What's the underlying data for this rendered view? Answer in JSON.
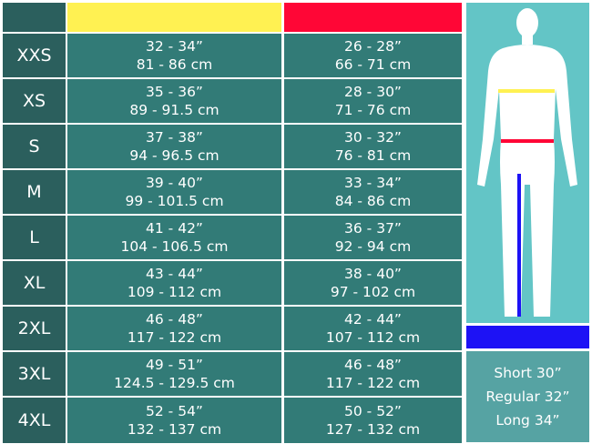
{
  "colors": {
    "chest": "#fff152",
    "waist": "#ff0636",
    "inseam": "#1d12f5"
  },
  "rows": [
    {
      "size": "XXS",
      "chest_in": "32 - 34”",
      "chest_cm": "81 - 86 cm",
      "waist_in": "26 - 28”",
      "waist_cm": "66 - 71 cm"
    },
    {
      "size": "XS",
      "chest_in": "35 - 36”",
      "chest_cm": "89 - 91.5 cm",
      "waist_in": "28 - 30”",
      "waist_cm": "71 - 76 cm"
    },
    {
      "size": "S",
      "chest_in": "37 - 38”",
      "chest_cm": "94 - 96.5 cm",
      "waist_in": "30 - 32”",
      "waist_cm": "76 - 81 cm"
    },
    {
      "size": "M",
      "chest_in": "39 - 40”",
      "chest_cm": "99 - 101.5 cm",
      "waist_in": "33 - 34”",
      "waist_cm": "84 - 86 cm"
    },
    {
      "size": "L",
      "chest_in": "41 - 42”",
      "chest_cm": "104 - 106.5 cm",
      "waist_in": "36 - 37”",
      "waist_cm": "92 - 94 cm"
    },
    {
      "size": "XL",
      "chest_in": "43 - 44”",
      "chest_cm": "109 - 112 cm",
      "waist_in": "38 - 40”",
      "waist_cm": "97 - 102 cm"
    },
    {
      "size": "2XL",
      "chest_in": "46 - 48”",
      "chest_cm": "117 - 122 cm",
      "waist_in": "42 - 44”",
      "waist_cm": "107 - 112 cm"
    },
    {
      "size": "3XL",
      "chest_in": "49 - 51”",
      "chest_cm": "124.5 - 129.5 cm",
      "waist_in": "46 - 48”",
      "waist_cm": "117 - 122 cm"
    },
    {
      "size": "4XL",
      "chest_in": "52 - 54”",
      "chest_cm": "132 - 137 cm",
      "waist_in": "50 - 52”",
      "waist_cm": "127 - 132 cm"
    }
  ],
  "leg_lengths": [
    "Short 30”",
    "Regular 32”",
    "Long 34”"
  ]
}
